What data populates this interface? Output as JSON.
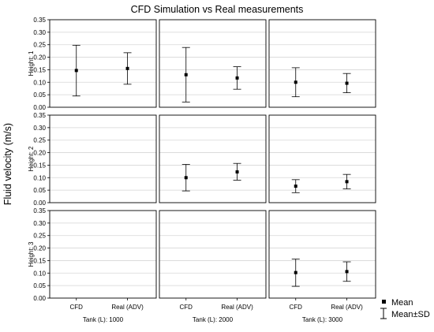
{
  "chart_data": {
    "type": "errorbar-grid",
    "title": "CFD Simulation vs Real measurements",
    "ylabel": "Fluid velocity (m/s)",
    "ylim": [
      0,
      0.35
    ],
    "yticks": [
      "0.00",
      "0.05",
      "0.10",
      "0.15",
      "0.20",
      "0.25",
      "0.30",
      "0.35"
    ],
    "categories": [
      "CFD",
      "Real (ADV)"
    ],
    "columns": [
      {
        "label": "Tank (L): 1000"
      },
      {
        "label": "Tank (L): 2000"
      },
      {
        "label": "Tank (L): 3000"
      }
    ],
    "rows": [
      {
        "label": "Height: 1"
      },
      {
        "label": "Height: 2"
      },
      {
        "label": "Height: 3"
      }
    ],
    "grid": true,
    "legend": {
      "position": "bottom-right",
      "items": [
        {
          "label": "Mean",
          "marker": "square"
        },
        {
          "label": "Mean±SD",
          "marker": "errorbar"
        }
      ]
    },
    "panels": [
      {
        "row": 0,
        "col": 0,
        "points": [
          {
            "category": "CFD",
            "mean": 0.147,
            "lower": 0.045,
            "upper": 0.248
          },
          {
            "category": "Real (ADV)",
            "mean": 0.155,
            "lower": 0.092,
            "upper": 0.218
          }
        ]
      },
      {
        "row": 0,
        "col": 1,
        "points": [
          {
            "category": "CFD",
            "mean": 0.13,
            "lower": 0.021,
            "upper": 0.239
          },
          {
            "category": "Real (ADV)",
            "mean": 0.117,
            "lower": 0.072,
            "upper": 0.162
          }
        ]
      },
      {
        "row": 0,
        "col": 2,
        "points": [
          {
            "category": "CFD",
            "mean": 0.1,
            "lower": 0.042,
            "upper": 0.158
          },
          {
            "category": "Real (ADV)",
            "mean": 0.096,
            "lower": 0.058,
            "upper": 0.135
          }
        ]
      },
      {
        "row": 1,
        "col": 0,
        "points": []
      },
      {
        "row": 1,
        "col": 1,
        "points": [
          {
            "category": "CFD",
            "mean": 0.1,
            "lower": 0.047,
            "upper": 0.153
          },
          {
            "category": "Real (ADV)",
            "mean": 0.123,
            "lower": 0.09,
            "upper": 0.157
          }
        ]
      },
      {
        "row": 1,
        "col": 2,
        "points": [
          {
            "category": "CFD",
            "mean": 0.066,
            "lower": 0.04,
            "upper": 0.092
          },
          {
            "category": "Real (ADV)",
            "mean": 0.084,
            "lower": 0.055,
            "upper": 0.113
          }
        ]
      },
      {
        "row": 2,
        "col": 0,
        "points": []
      },
      {
        "row": 2,
        "col": 1,
        "points": []
      },
      {
        "row": 2,
        "col": 2,
        "points": [
          {
            "category": "CFD",
            "mean": 0.102,
            "lower": 0.047,
            "upper": 0.156
          },
          {
            "category": "Real (ADV)",
            "mean": 0.106,
            "lower": 0.067,
            "upper": 0.145
          }
        ]
      }
    ]
  }
}
